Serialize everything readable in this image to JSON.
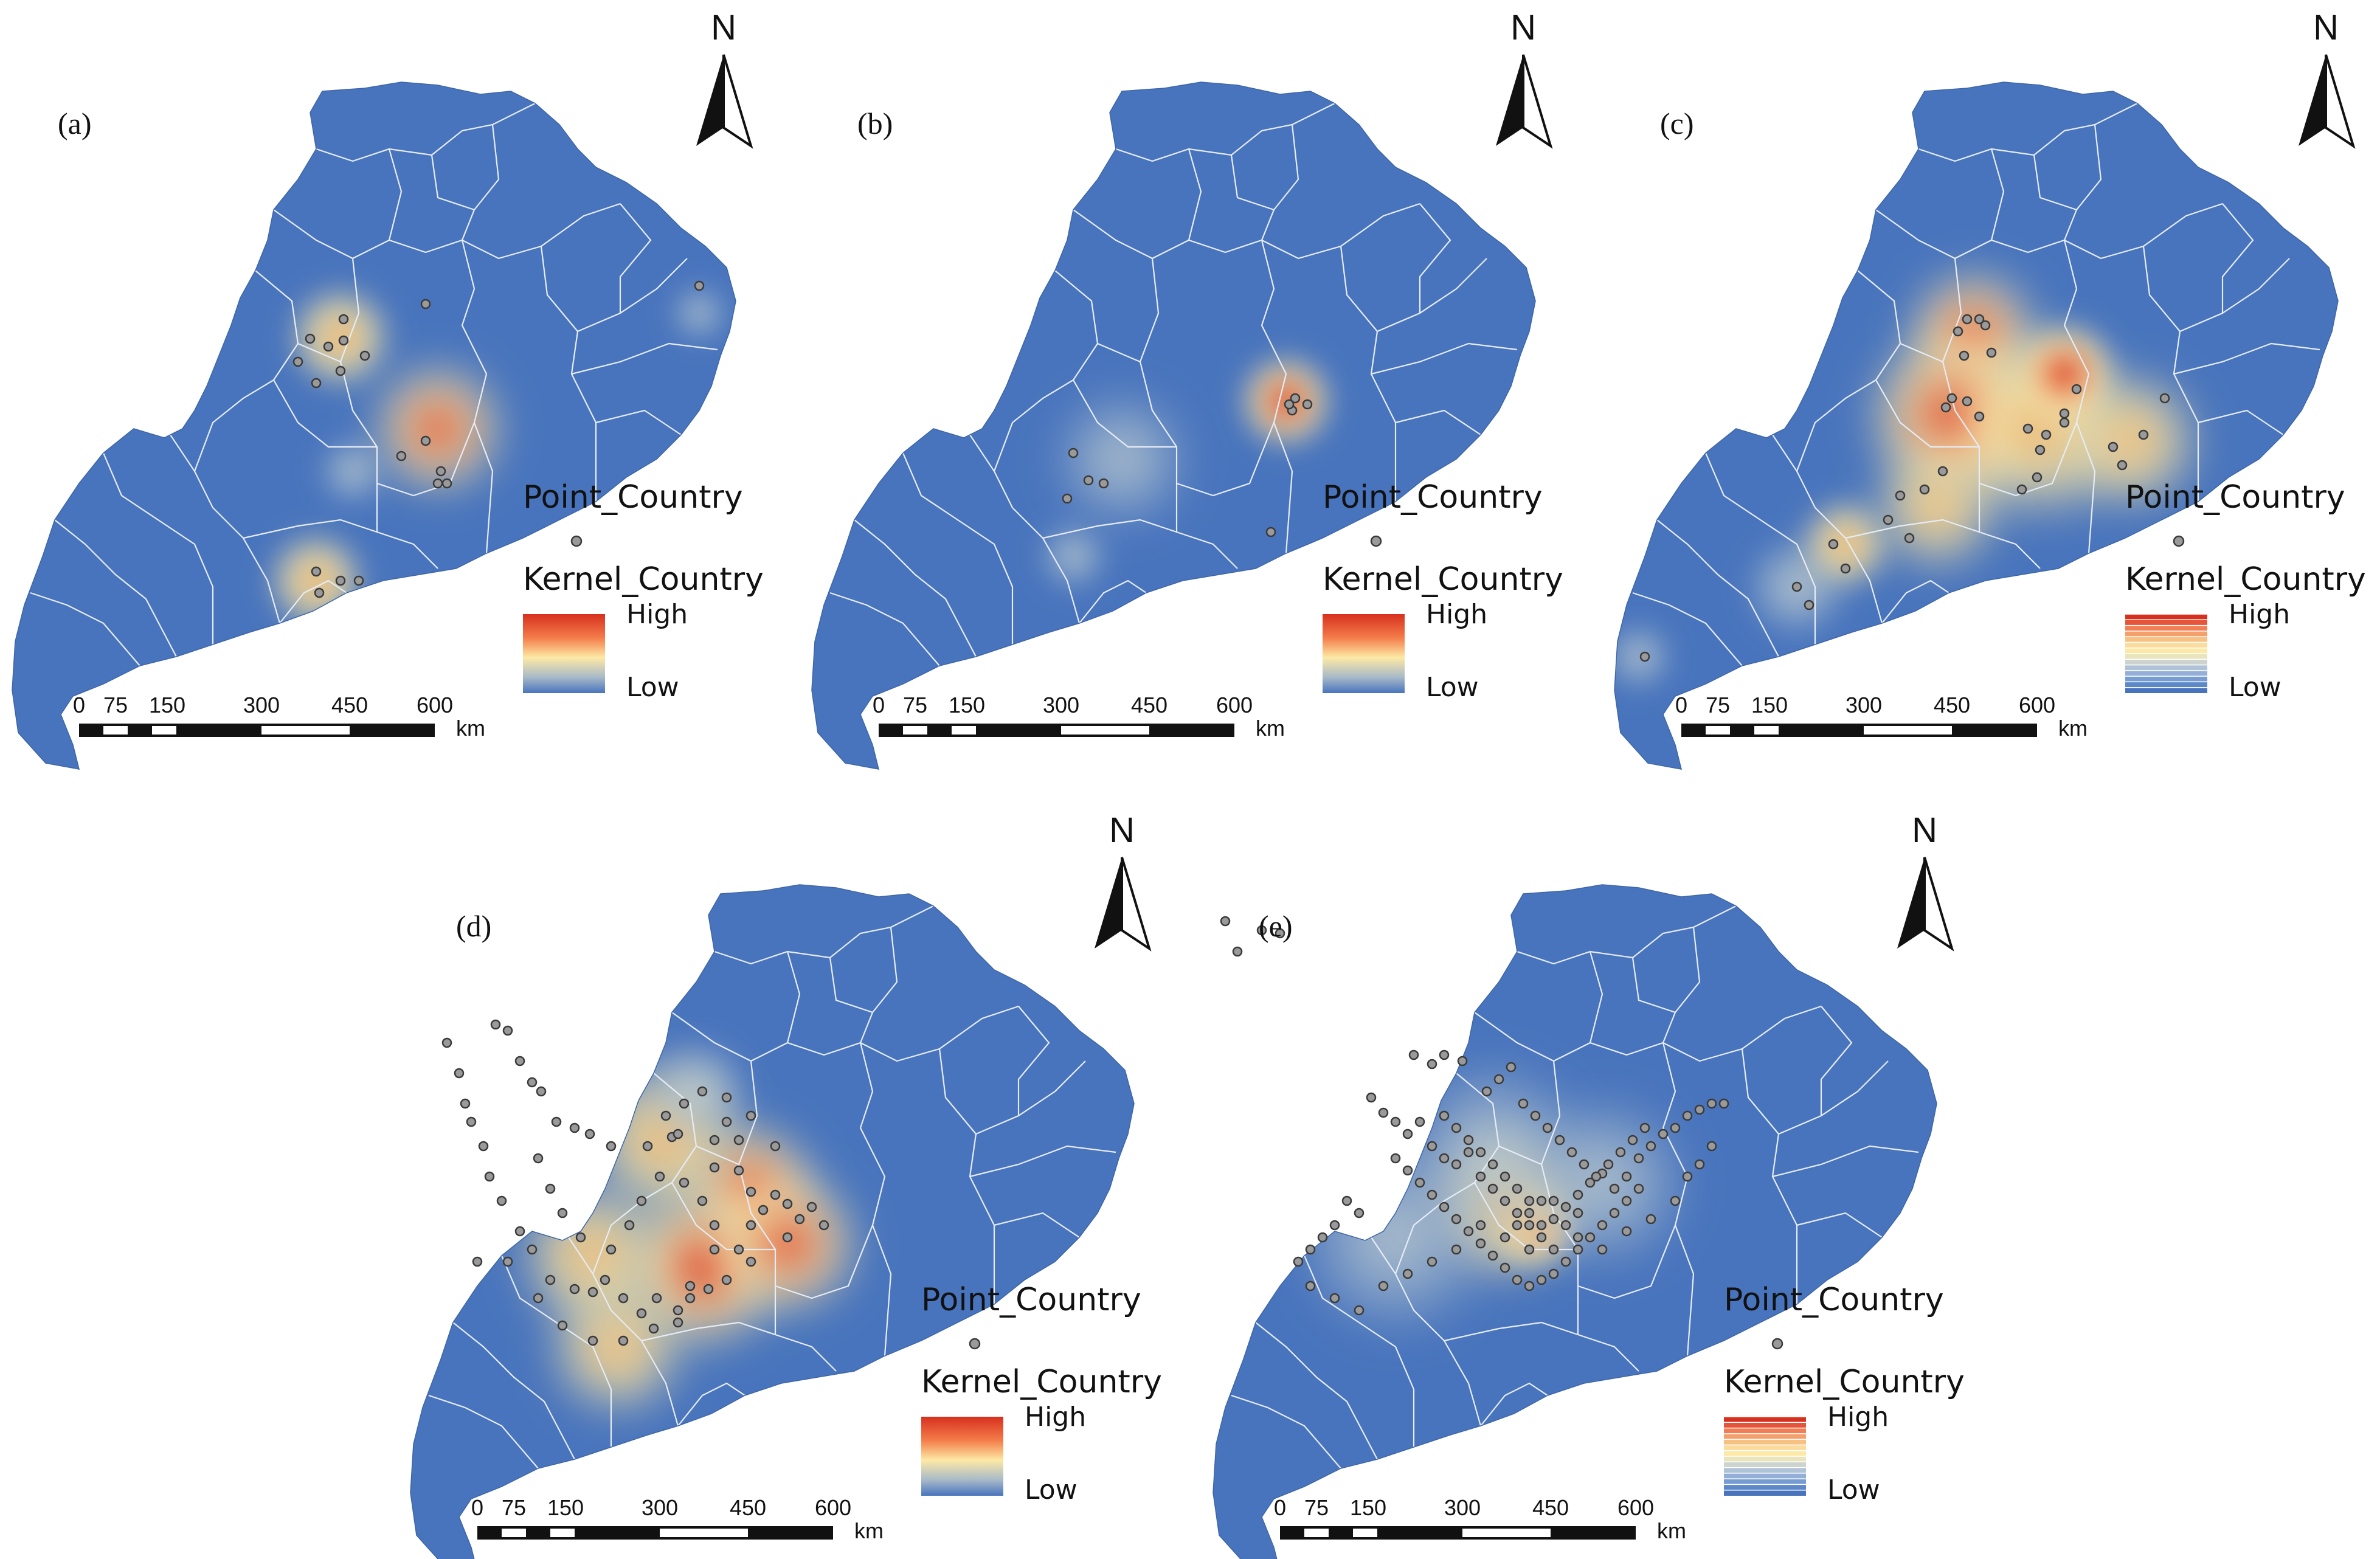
{
  "colors": {
    "land": "#4874bd",
    "boundary": "#e6ecf5",
    "point_fill": "#9a9a9a",
    "point_stroke": "#3a3a3a",
    "high": "#d7301f",
    "mid": "#fde9a6",
    "low": "#4874bd"
  },
  "panels": [
    {
      "label": "(a)",
      "north": "N",
      "legend": {
        "point_title": "Point_Country",
        "kernel_title": "Kernel_Country",
        "high": "High",
        "low": "Low",
        "ramp": "smooth"
      },
      "scale": {
        "ticks": [
          "0",
          "75",
          "150",
          "300",
          "450",
          "600"
        ],
        "unit": "km"
      }
    },
    {
      "label": "(b)",
      "north": "N",
      "legend": {
        "point_title": "Point_Country",
        "kernel_title": "Kernel_Country",
        "high": "High",
        "low": "Low",
        "ramp": "smooth"
      },
      "scale": {
        "ticks": [
          "0",
          "75",
          "150",
          "300",
          "450",
          "600"
        ],
        "unit": "km"
      }
    },
    {
      "label": "(c)",
      "north": "N",
      "legend": {
        "point_title": "Point_Country",
        "kernel_title": "Kernel_Country",
        "high": "High",
        "low": "Low",
        "ramp": "banded"
      },
      "scale": {
        "ticks": [
          "0",
          "75",
          "150",
          "300",
          "450",
          "600"
        ],
        "unit": "km"
      }
    },
    {
      "label": "(d)",
      "north": "N",
      "legend": {
        "point_title": "Point_Country",
        "kernel_title": "Kernel_Country",
        "high": "High",
        "low": "Low",
        "ramp": "smooth"
      },
      "scale": {
        "ticks": [
          "0",
          "75",
          "150",
          "300",
          "450",
          "600"
        ],
        "unit": "km"
      }
    },
    {
      "label": "(e)",
      "north": "N",
      "legend": {
        "point_title": "Point_Country",
        "kernel_title": "Kernel_Country",
        "high": "High",
        "low": "Low",
        "ramp": "banded"
      },
      "scale": {
        "ticks": [
          "0",
          "75",
          "150",
          "300",
          "450",
          "600"
        ],
        "unit": "km"
      }
    }
  ]
}
